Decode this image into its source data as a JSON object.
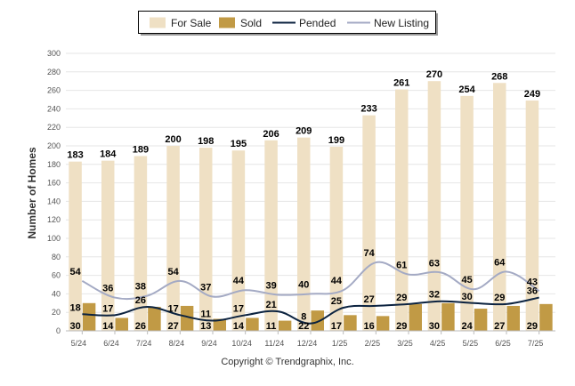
{
  "chart_data": {
    "type": "bar",
    "title": "",
    "xlabel": "",
    "ylabel": "Number of Homes",
    "ylim": [
      0,
      300
    ],
    "ytick_step": 20,
    "grid": true,
    "legend_position": "top-center",
    "categories": [
      "5/24",
      "6/24",
      "7/24",
      "8/24",
      "9/24",
      "10/24",
      "11/24",
      "12/24",
      "1/25",
      "2/25",
      "3/25",
      "4/25",
      "5/25",
      "6/25",
      "7/25"
    ],
    "series": [
      {
        "name": "For Sale",
        "kind": "bar",
        "color": "#efe0c4",
        "values": [
          183,
          184,
          189,
          200,
          198,
          195,
          206,
          209,
          199,
          233,
          261,
          270,
          254,
          268,
          249
        ]
      },
      {
        "name": "Sold",
        "kind": "bar",
        "color": "#c19a45",
        "values": [
          30,
          14,
          26,
          27,
          13,
          14,
          11,
          22,
          17,
          16,
          29,
          30,
          24,
          27,
          29
        ]
      },
      {
        "name": "Pended",
        "kind": "line",
        "color": "#0c2340",
        "values": [
          18,
          17,
          26,
          17,
          11,
          17,
          21,
          8,
          25,
          27,
          29,
          32,
          30,
          29,
          36
        ]
      },
      {
        "name": "New Listing",
        "kind": "line",
        "color": "#a4aac4",
        "values": [
          54,
          36,
          38,
          54,
          37,
          44,
          39,
          40,
          44,
          74,
          61,
          63,
          45,
          64,
          43
        ]
      }
    ]
  },
  "copyright": "Copyright © Trendgraphix, Inc."
}
